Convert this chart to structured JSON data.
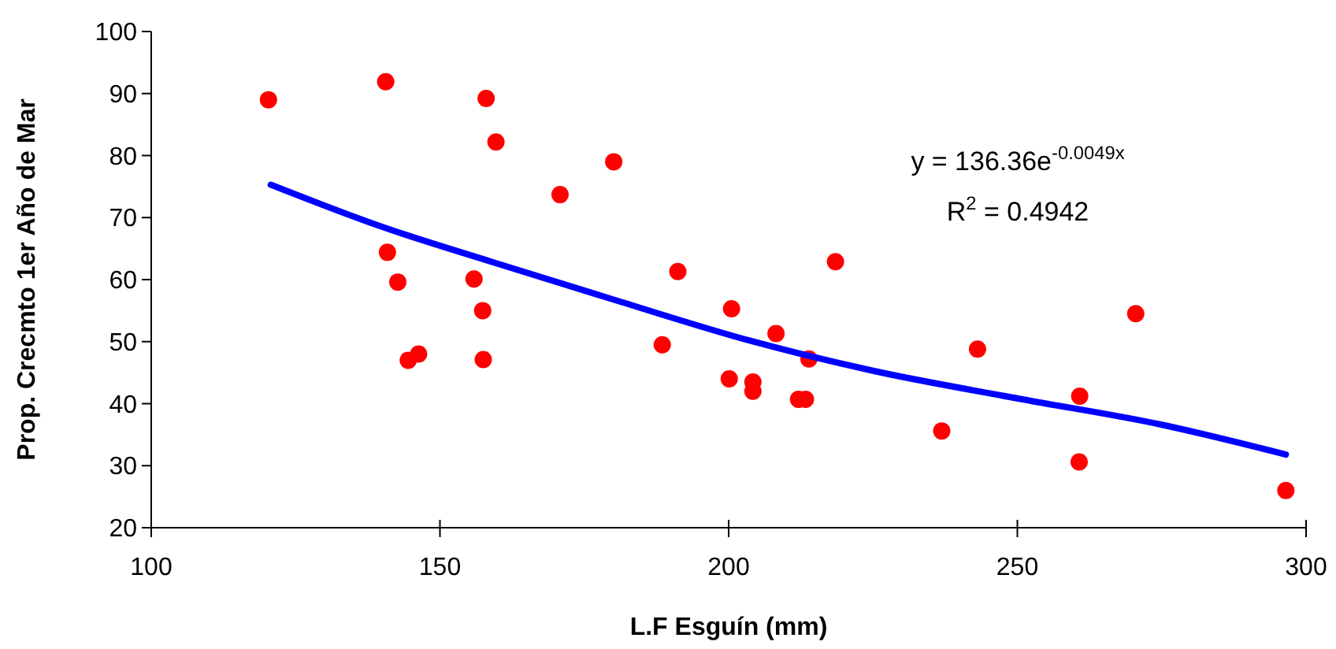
{
  "chart_data": {
    "type": "scatter",
    "xlabel": "L.F Esguín (mm)",
    "ylabel": "Prop. Crecmto 1er Año de Mar",
    "xlim": [
      100,
      300
    ],
    "xticks": [
      100,
      150,
      200,
      250,
      300
    ],
    "ylim": [
      20,
      100
    ],
    "yticks": [
      20,
      30,
      40,
      50,
      60,
      70,
      80,
      90,
      100
    ],
    "grid": false,
    "marker": "circle",
    "annotations": [
      "y = 136.36e$^{-0.0049x}$",
      "R$^{2}$ = 0.4942"
    ],
    "series": [
      {
        "color": "#ff0000",
        "x": [
          120.3,
          140.6,
          158.0,
          159.7,
          180.1,
          170.8,
          140.9,
          142.7,
          155.9,
          157.4,
          144.5,
          146.3,
          157.5,
          191.2,
          188.5,
          200.5,
          200.1,
          204.2,
          204.2,
          208.2,
          213.9,
          212.1,
          213.3,
          218.5,
          243.1,
          236.9,
          260.8,
          260.7,
          270.5,
          296.5
        ],
        "values": [
          89.0,
          91.9,
          89.2,
          82.2,
          79.0,
          73.7,
          64.4,
          59.6,
          60.1,
          55.0,
          47.0,
          48.0,
          47.1,
          61.3,
          49.5,
          55.3,
          44.0,
          43.5,
          42.0,
          51.3,
          47.2,
          40.7,
          40.7,
          62.9,
          48.8,
          35.6,
          41.2,
          30.6,
          54.5,
          26.0
        ]
      },
      {
        "type": "line",
        "color": "#0000ff",
        "marker": "none",
        "line_style": "solid",
        "x": [
          120.7,
          140,
          159.2,
          180,
          203.9,
          225,
          250.3,
          275,
          296.5
        ],
        "values": [
          75.3,
          68.5,
          62.8,
          56.8,
          50.1,
          45.3,
          40.8,
          36.6,
          31.8
        ]
      }
    ]
  }
}
